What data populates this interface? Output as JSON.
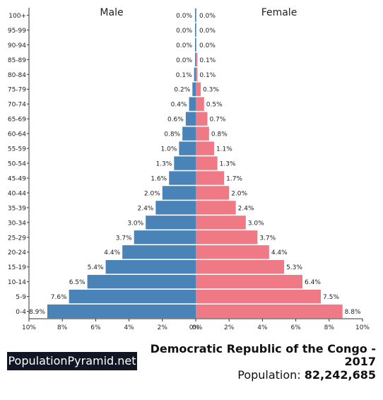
{
  "chart_data": {
    "type": "bar",
    "orientation": "horizontal-population-pyramid",
    "categories": [
      "100+",
      "95-99",
      "90-94",
      "85-89",
      "80-84",
      "75-79",
      "70-74",
      "65-69",
      "60-64",
      "55-59",
      "50-54",
      "45-49",
      "40-44",
      "35-39",
      "30-34",
      "25-29",
      "20-24",
      "15-19",
      "10-14",
      "5-9",
      "0-4"
    ],
    "series": [
      {
        "name": "Male",
        "color": "#4a83b8",
        "values": [
          0.0,
          0.0,
          0.0,
          0.0,
          0.1,
          0.2,
          0.4,
          0.6,
          0.8,
          1.0,
          1.3,
          1.6,
          2.0,
          2.4,
          3.0,
          3.7,
          4.4,
          5.4,
          6.5,
          7.6,
          8.9
        ],
        "labels": [
          "0.0%",
          "0.0%",
          "0.0%",
          "0.0%",
          "0.1%",
          "0.2%",
          "0.4%",
          "0.6%",
          "0.8%",
          "1.0%",
          "1.3%",
          "1.6%",
          "2.0%",
          "2.4%",
          "3.0%",
          "3.7%",
          "4.4%",
          "5.4%",
          "6.5%",
          "7.6%",
          "8.9%"
        ]
      },
      {
        "name": "Female",
        "color": "#ef7a86",
        "values": [
          0.0,
          0.0,
          0.0,
          0.1,
          0.1,
          0.3,
          0.5,
          0.7,
          0.8,
          1.1,
          1.3,
          1.7,
          2.0,
          2.4,
          3.0,
          3.7,
          4.4,
          5.3,
          6.4,
          7.5,
          8.8
        ],
        "labels": [
          "0.0%",
          "0.0%",
          "0.0%",
          "0.1%",
          "0.1%",
          "0.3%",
          "0.5%",
          "0.7%",
          "0.8%",
          "1.1%",
          "1.3%",
          "1.7%",
          "2.0%",
          "2.4%",
          "3.0%",
          "3.7%",
          "4.4%",
          "5.3%",
          "6.4%",
          "7.5%",
          "8.8%"
        ]
      }
    ],
    "xlim": [
      -10,
      10
    ],
    "xticks": [
      "10%",
      "8%",
      "6%",
      "4%",
      "2%",
      "0%",
      "0%",
      "2%",
      "4%",
      "6%",
      "8%",
      "10%"
    ],
    "grid": false
  },
  "brand": "PopulationPyramid.net",
  "country_title": "Democratic Republic of the Congo -",
  "year": "2017",
  "population_label": "Population:",
  "population_value": "82,242,685"
}
